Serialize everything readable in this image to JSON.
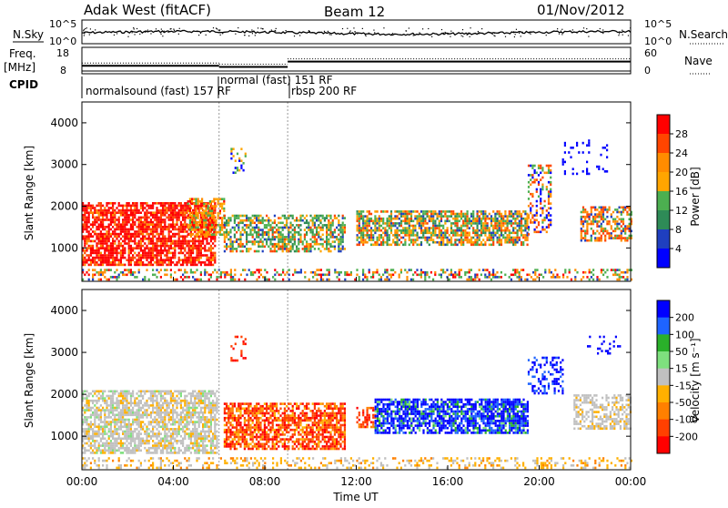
{
  "header": {
    "site": "Adak West (fitACF)",
    "beam": "Beam 12",
    "date": "01/Nov/2012"
  },
  "colors": {
    "power_scale": [
      "#0000ff",
      "#1f3fbf",
      "#2e8b57",
      "#4caf50",
      "#ffa500",
      "#ff8c00",
      "#ff4500",
      "#ff0000"
    ],
    "velocity_scale": [
      "#0000ff",
      "#1e64ff",
      "#2ab02a",
      "#7ee07e",
      "#c0c0c0",
      "#ffb000",
      "#ff8000",
      "#ff4000",
      "#ff0000"
    ]
  },
  "chart_data": [
    {
      "type": "line",
      "panel": "nsky_nsearch",
      "left_label": "N.Sky",
      "right_label": "N.Search",
      "left_ticks": [
        "10^5",
        "10^0"
      ],
      "right_ticks": [
        "10^5",
        "10^0"
      ]
    },
    {
      "type": "line",
      "panel": "freq_nave",
      "left_label_line1": "Freq.",
      "left_label_line2": "[MHz]",
      "right_label": "Nave",
      "left_ticks": [
        "18",
        "8"
      ],
      "right_ticks": [
        "60",
        "0"
      ],
      "segments": [
        {
          "start_hour": 0,
          "end_hour": 6,
          "freq_mhz": 11.0
        },
        {
          "start_hour": 6,
          "end_hour": 9,
          "freq_mhz": 10.6
        },
        {
          "start_hour": 9,
          "end_hour": 24,
          "freq_mhz": 12.6
        }
      ]
    },
    {
      "type": "table",
      "panel": "cpid",
      "label": "CPID",
      "entries": [
        {
          "start_hour": 0,
          "text": "normalsound (fast) 157 RF"
        },
        {
          "start_hour": 6,
          "text": "normal (fast) 151 RF"
        },
        {
          "start_hour": 9,
          "text": "rbsp 200 RF"
        }
      ]
    },
    {
      "type": "heatmap",
      "panel": "power",
      "ylabel": "Slant Range [km]",
      "yticks": [
        1000,
        2000,
        3000,
        4000
      ],
      "ylim": [
        200,
        4500
      ],
      "xlim": [
        0,
        24
      ],
      "colorbar_label": "Power [dB]",
      "colorbar_ticks": [
        "28",
        "24",
        "20",
        "16",
        "12",
        "8",
        "4"
      ]
    },
    {
      "type": "heatmap",
      "panel": "velocity",
      "ylabel": "Slant Range [km]",
      "yticks": [
        1000,
        2000,
        3000,
        4000
      ],
      "ylim": [
        200,
        4500
      ],
      "xlim": [
        0,
        24
      ],
      "xticks": [
        "00:00",
        "04:00",
        "08:00",
        "12:00",
        "16:00",
        "20:00",
        "00:00"
      ],
      "xlabel": "Time UT",
      "colorbar_label": "Velocity [m s⁻¹]",
      "colorbar_ticks": [
        "200",
        "100",
        "50",
        "15",
        "-15",
        "-50",
        "-100",
        "-200"
      ]
    }
  ]
}
